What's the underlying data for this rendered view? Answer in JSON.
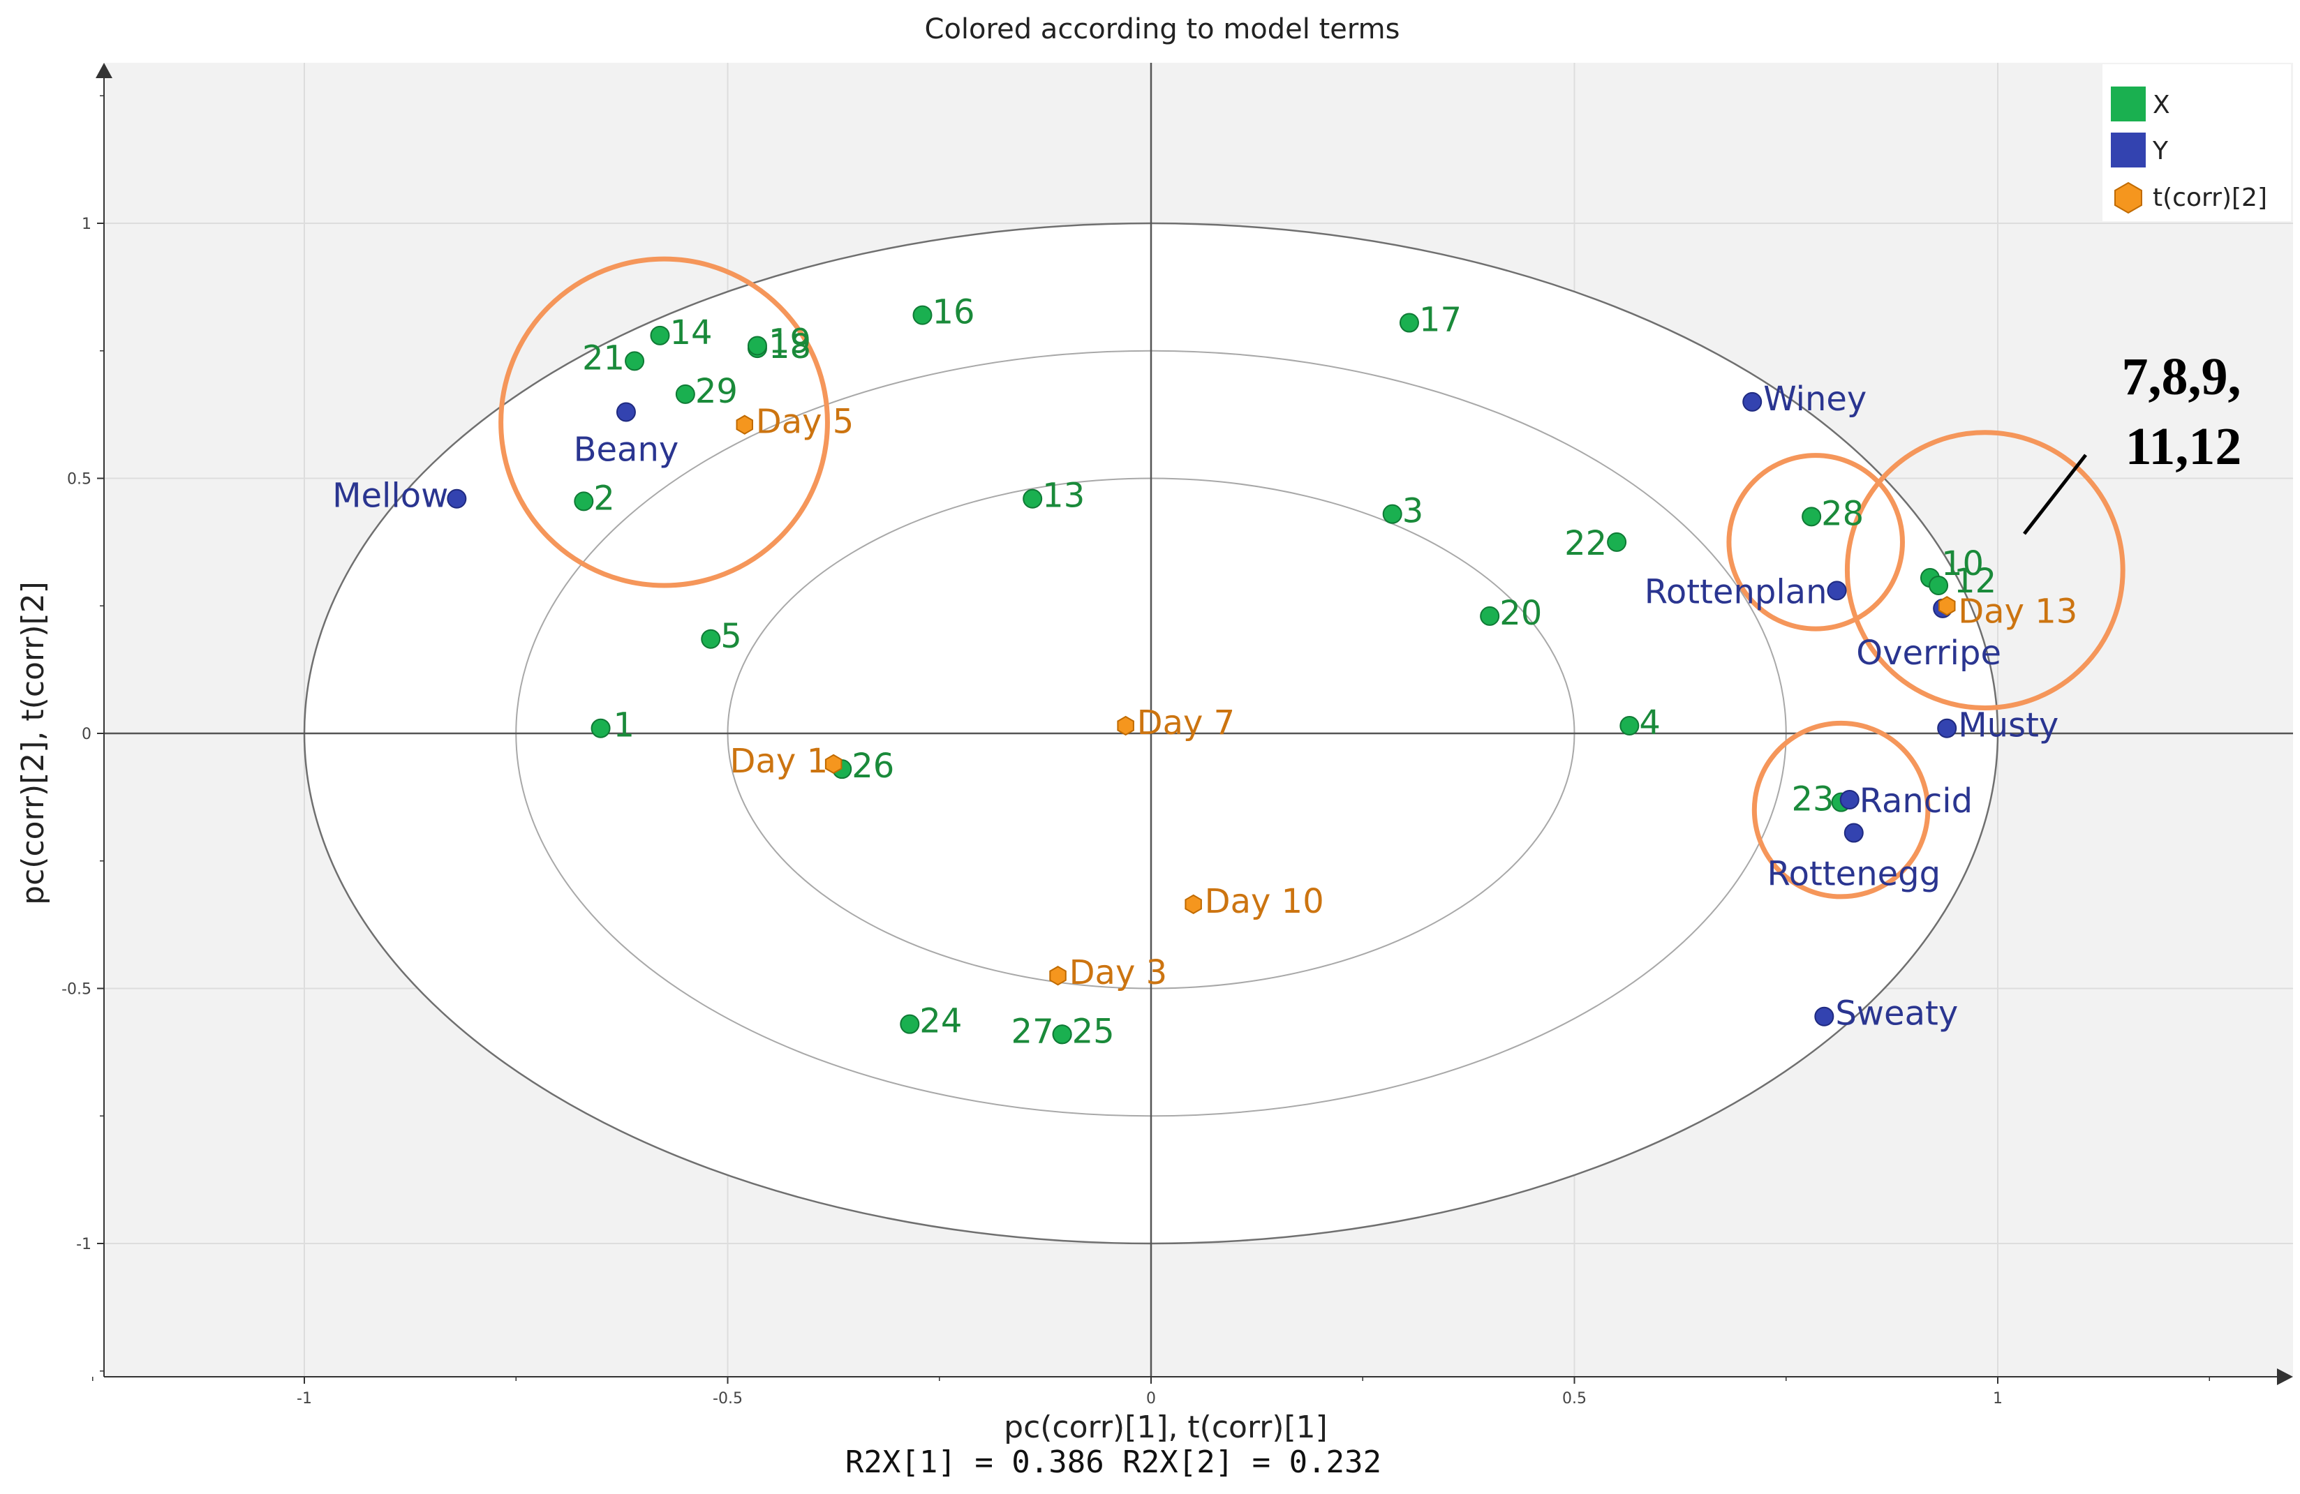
{
  "chart_data": {
    "type": "scatter",
    "title": "Colored according to model terms",
    "xlabel": "pc(corr)[1], t(corr)[1]",
    "ylabel": "pc(corr)[2], t(corr)[2]",
    "footer": "R2X[1] = 0.386 R2X[2] = 0.232",
    "xlim": [
      -1.24,
      1.32
    ],
    "ylim": [
      -1.24,
      1.3
    ],
    "xticks": [
      -1,
      -0.5,
      0,
      0.5,
      1
    ],
    "yticks": [
      -1,
      -0.5,
      0,
      0.5,
      1
    ],
    "xtick_labels": [
      "-1",
      "-0.5",
      "0",
      "0.5",
      "1"
    ],
    "ytick_labels": [
      "-1",
      "-0.5",
      "0",
      "0.5",
      "1"
    ],
    "ellipse_radii": [
      1.0,
      0.75,
      0.5
    ],
    "legend": {
      "position": "top-right",
      "entries": [
        {
          "label": "X",
          "color": "#1ab050",
          "marker": "square"
        },
        {
          "label": "Y",
          "color": "#3343b0",
          "marker": "square"
        },
        {
          "label": "t(corr)[2]",
          "color": "#f5961e",
          "marker": "hexagon"
        }
      ]
    },
    "series": [
      {
        "name": "X",
        "color": "#1ab050",
        "label_color": "#1a8a3a",
        "points": [
          {
            "label": "1",
            "x": -0.65,
            "y": 0.01
          },
          {
            "label": "2",
            "x": -0.67,
            "y": 0.455
          },
          {
            "label": "3",
            "x": 0.285,
            "y": 0.43
          },
          {
            "label": "4",
            "x": 0.565,
            "y": 0.015
          },
          {
            "label": "5",
            "x": -0.52,
            "y": 0.185
          },
          {
            "label": "10",
            "x": 0.92,
            "y": 0.305
          },
          {
            "label": "12",
            "x": 0.93,
            "y": 0.29
          },
          {
            "label": "13",
            "x": -0.14,
            "y": 0.46
          },
          {
            "label": "14",
            "x": -0.58,
            "y": 0.78
          },
          {
            "label": "16",
            "x": -0.27,
            "y": 0.82
          },
          {
            "label": "17",
            "x": 0.305,
            "y": 0.805
          },
          {
            "label": "18",
            "x": -0.465,
            "y": 0.755
          },
          {
            "label": "19",
            "x": -0.465,
            "y": 0.76
          },
          {
            "label": "20",
            "x": 0.4,
            "y": 0.23
          },
          {
            "label": "21",
            "x": -0.61,
            "y": 0.73
          },
          {
            "label": "22",
            "x": 0.55,
            "y": 0.375
          },
          {
            "label": "23",
            "x": 0.815,
            "y": -0.135
          },
          {
            "label": "24",
            "x": -0.285,
            "y": -0.57
          },
          {
            "label": "25",
            "x": -0.105,
            "y": -0.59
          },
          {
            "label": "26",
            "x": -0.365,
            "y": -0.07
          },
          {
            "label": "27",
            "x": -0.105,
            "y": -0.59
          },
          {
            "label": "28",
            "x": 0.78,
            "y": 0.425
          },
          {
            "label": "29",
            "x": -0.55,
            "y": 0.665
          }
        ]
      },
      {
        "name": "Y",
        "color": "#3343b0",
        "label_color": "#2a3590",
        "points": [
          {
            "label": "Mellow",
            "x": -0.82,
            "y": 0.46
          },
          {
            "label": "Beany",
            "x": -0.62,
            "y": 0.63
          },
          {
            "label": "Winey",
            "x": 0.71,
            "y": 0.65
          },
          {
            "label": "Rottenplan",
            "x": 0.81,
            "y": 0.28
          },
          {
            "label": "Overripe",
            "x": 0.935,
            "y": 0.245
          },
          {
            "label": "Musty",
            "x": 0.94,
            "y": 0.01
          },
          {
            "label": "Rancid",
            "x": 0.825,
            "y": -0.13
          },
          {
            "label": "Rottenegg",
            "x": 0.83,
            "y": -0.195
          },
          {
            "label": "Sweaty",
            "x": 0.795,
            "y": -0.555
          }
        ]
      },
      {
        "name": "t(corr)[2]",
        "color": "#f5961e",
        "label_color": "#cc7410",
        "points": [
          {
            "label": "Day 5",
            "x": -0.48,
            "y": 0.605
          },
          {
            "label": "Day 1",
            "x": -0.375,
            "y": -0.06
          },
          {
            "label": "Day 7",
            "x": -0.03,
            "y": 0.015
          },
          {
            "label": "Day 10",
            "x": 0.05,
            "y": -0.335
          },
          {
            "label": "Day 3",
            "x": -0.11,
            "y": -0.475
          },
          {
            "label": "Day 13",
            "x": 0.94,
            "y": 0.25
          }
        ]
      }
    ],
    "annotations": {
      "callout_line1": "7,8,9,",
      "callout_line2": "11,12",
      "circles": [
        {
          "cx": -0.575,
          "cy": 0.61,
          "r": 0.32
        },
        {
          "cx": 0.785,
          "cy": 0.375,
          "r": 0.17
        },
        {
          "cx": 0.985,
          "cy": 0.32,
          "r": 0.27
        },
        {
          "cx": 0.815,
          "cy": -0.15,
          "r": 0.17
        }
      ]
    }
  }
}
